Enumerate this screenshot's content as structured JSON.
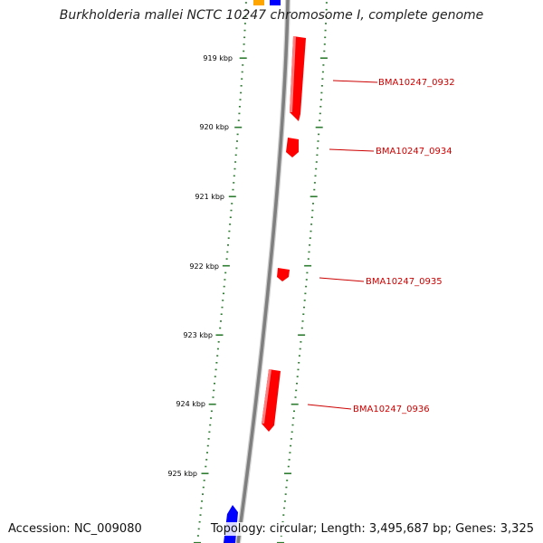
{
  "map": {
    "title": "Burkholderia mallei NCTC 10247 chromosome I, complete genome",
    "accession_text": "Accession: NC_009080",
    "topology_text": "Topology: circular; Length: 3,495,687 bp; Genes: 3,325",
    "colors": {
      "backbone": "#7f7f7f",
      "ticks": "#2e7d32",
      "gene_reverse": "#ff0000",
      "gene_forward": "#0000ff",
      "gene_other": "#ffa500",
      "label": "#cc0000",
      "scale_text": "#000000"
    },
    "scale_labels": [
      "919 kbp",
      "920 kbp",
      "921 kbp",
      "922 kbp",
      "923 kbp",
      "924 kbp",
      "925 kbp"
    ],
    "gene_labels": [
      "BMA10247_0932",
      "BMA10247_0934",
      "BMA10247_0935",
      "BMA10247_0936"
    ]
  }
}
